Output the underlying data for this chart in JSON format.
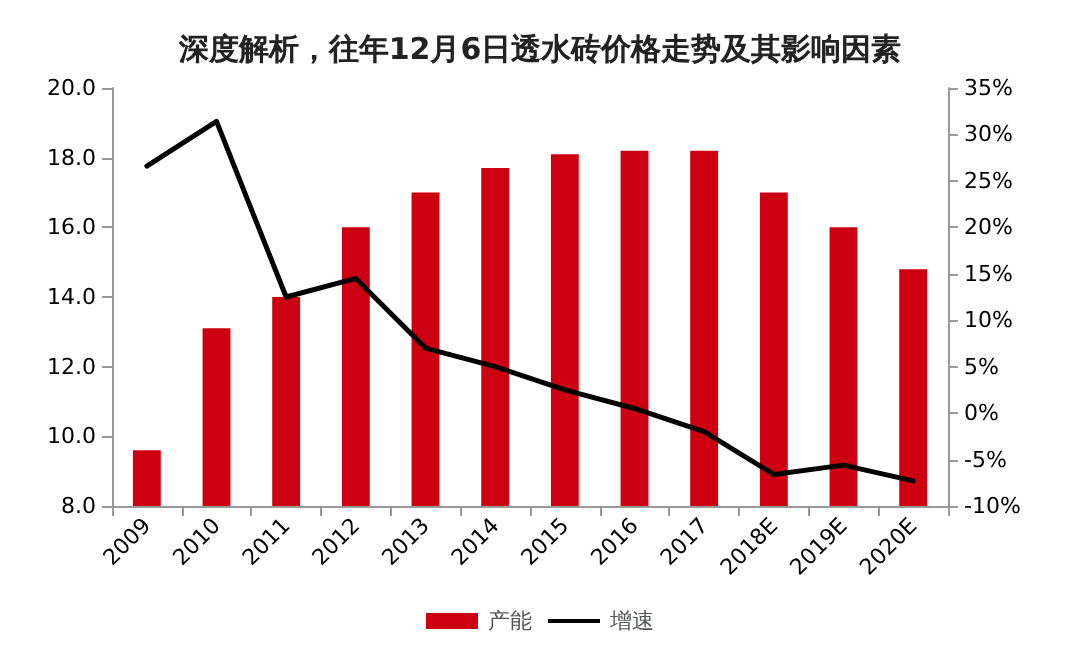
{
  "chart_data": {
    "type": "bar",
    "title": "深度解析，往年12月6日透水砖价格走势及其影响因素",
    "categories": [
      "2009",
      "2010",
      "2011",
      "2012",
      "2013",
      "2014",
      "2015",
      "2016",
      "2017",
      "2018E",
      "2019E",
      "2020E"
    ],
    "series": [
      {
        "name": "产能",
        "color": "#cc0010",
        "values": [
          9.6,
          13.1,
          14.0,
          16.0,
          17.0,
          17.7,
          18.1,
          18.2,
          18.2,
          17.0,
          16.0,
          14.8
        ]
      },
      {
        "name": "增速",
        "type": "line",
        "axis": "y2",
        "color": "#000000",
        "values": [
          26.6,
          31.4,
          12.5,
          14.5,
          7,
          5,
          2.5,
          0.5,
          -2,
          -6.6,
          -5.6,
          -7.3
        ]
      }
    ],
    "ylim": [
      8,
      20
    ],
    "yticks": [
      {
        "value": 8,
        "label": "8.0"
      },
      {
        "value": 10,
        "label": "10.0"
      },
      {
        "value": 12,
        "label": "12.0"
      },
      {
        "value": 14,
        "label": "14.0"
      },
      {
        "value": 16,
        "label": "16.0"
      },
      {
        "value": 18,
        "label": "18.0"
      },
      {
        "value": 20,
        "label": "20.0"
      }
    ],
    "y2lim": [
      -10,
      35
    ],
    "y2ticks": [
      {
        "value": -10,
        "label": "-10%"
      },
      {
        "value": -5,
        "label": "-5%"
      },
      {
        "value": 0,
        "label": "0%"
      },
      {
        "value": 5,
        "label": "5%"
      },
      {
        "value": 10,
        "label": "10%"
      },
      {
        "value": 15,
        "label": "15%"
      },
      {
        "value": 20,
        "label": "20%"
      },
      {
        "value": 25,
        "label": "25%"
      },
      {
        "value": 30,
        "label": "30%"
      },
      {
        "value": 35,
        "label": "35%"
      }
    ],
    "legend": "bottom",
    "grid": false,
    "marker": "none",
    "line_style": "solid"
  }
}
